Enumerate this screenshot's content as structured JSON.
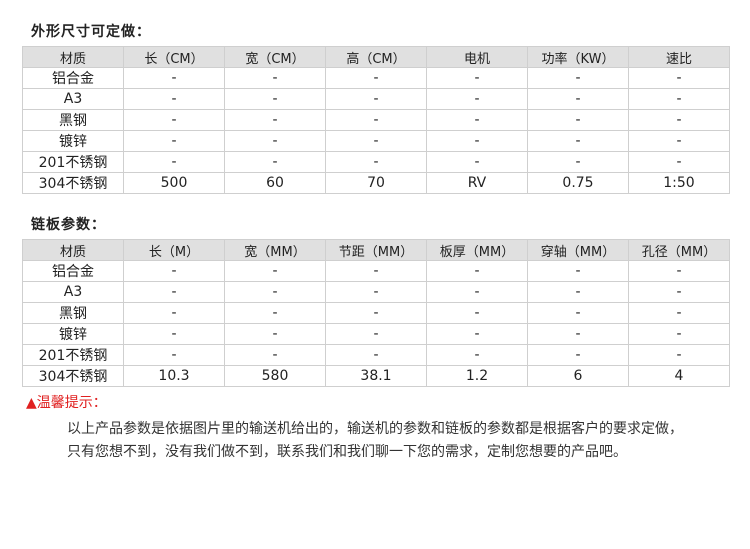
{
  "section1": {
    "title": "外形尺寸可定做：",
    "headers": [
      "材质",
      "长（CM）",
      "宽（CM）",
      "高（CM）",
      "电机",
      "功率（KW）",
      "速比"
    ],
    "rows": [
      [
        "铝合金",
        "-",
        "-",
        "-",
        "-",
        "-",
        "-"
      ],
      [
        "A3",
        "-",
        "-",
        "-",
        "-",
        "-",
        "-"
      ],
      [
        "黑钢",
        "-",
        "-",
        "-",
        "-",
        "-",
        "-"
      ],
      [
        "镀锌",
        "-",
        "-",
        "-",
        "-",
        "-",
        "-"
      ],
      [
        "201不锈钢",
        "-",
        "-",
        "-",
        "-",
        "-",
        "-"
      ],
      [
        "304不锈钢",
        "500",
        "60",
        "70",
        "RV",
        "0.75",
        "1:50"
      ]
    ]
  },
  "section2": {
    "title": "链板参数：",
    "headers": [
      "材质",
      "长（M）",
      "宽（MM）",
      "节距（MM）",
      "板厚（MM）",
      "穿轴（MM）",
      "孔径（MM）"
    ],
    "rows": [
      [
        "铝合金",
        "-",
        "-",
        "-",
        "-",
        "-",
        "-"
      ],
      [
        "A3",
        "-",
        "-",
        "-",
        "-",
        "-",
        "-"
      ],
      [
        "黑钢",
        "-",
        "-",
        "-",
        "-",
        "-",
        "-"
      ],
      [
        "镀锌",
        "-",
        "-",
        "-",
        "-",
        "-",
        "-"
      ],
      [
        "201不锈钢",
        "-",
        "-",
        "-",
        "-",
        "-",
        "-"
      ],
      [
        "304不锈钢",
        "10.3",
        "580",
        "38.1",
        "1.2",
        "6",
        "4"
      ]
    ]
  },
  "note": {
    "label": "▲温馨提示：",
    "lines": [
      "以上产品参数是依据图片里的输送机给出的，输送机的参数和链板的参数都是根据客户的要求定做，",
      "只有您想不到，没有我们做不到，联系我们和我们聊一下您的需求，定制您想要的产品吧。"
    ],
    "color": "#e02020"
  }
}
